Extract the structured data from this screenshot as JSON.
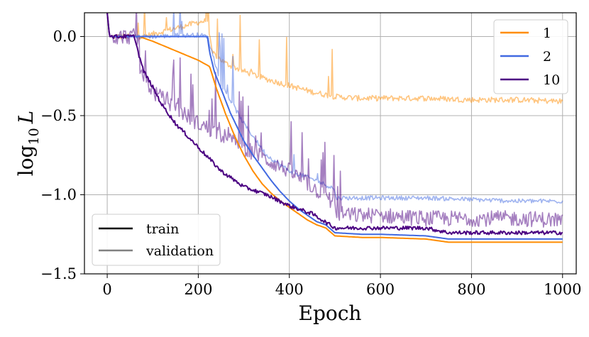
{
  "chart_data": {
    "type": "line",
    "title": "",
    "xlabel": "Epoch",
    "ylabel": "log10 L",
    "ylabel_parts": {
      "base": "log",
      "sub": "10",
      "var": "L"
    },
    "xlim": [
      -50,
      1030
    ],
    "ylim": [
      -1.5,
      0.15
    ],
    "xticks": [
      0,
      200,
      400,
      600,
      800,
      1000
    ],
    "xtick_labels": [
      "0",
      "200",
      "400",
      "600",
      "800",
      "1000"
    ],
    "yticks": [
      0.0,
      -0.5,
      -1.0,
      -1.5
    ],
    "ytick_labels": [
      "0.0",
      "−0.5",
      "−1.0",
      "−1.5"
    ],
    "grid": true,
    "colors": {
      "1": "#ff8c00",
      "2": "#4169e1",
      "10": "#4b0082",
      "train": "#000000",
      "validation": "#808080"
    },
    "legend_series": {
      "placement": "top-right",
      "entries": [
        "1",
        "2",
        "10"
      ]
    },
    "legend_style": {
      "placement": "bottom-left",
      "entries": [
        "train",
        "validation"
      ]
    },
    "series": [
      {
        "name": "1",
        "style": "train",
        "x": [
          0,
          5,
          70,
          100,
          150,
          200,
          225,
          240,
          260,
          280,
          300,
          320,
          340,
          360,
          380,
          400,
          420,
          440,
          460,
          480,
          500,
          560,
          600,
          700,
          750,
          800,
          900,
          1000
        ],
        "y": [
          0.15,
          0.0,
          0.0,
          -0.03,
          -0.09,
          -0.15,
          -0.19,
          -0.33,
          -0.49,
          -0.63,
          -0.75,
          -0.85,
          -0.93,
          -0.99,
          -1.04,
          -1.08,
          -1.12,
          -1.16,
          -1.19,
          -1.21,
          -1.26,
          -1.27,
          -1.27,
          -1.28,
          -1.3,
          -1.3,
          -1.3,
          -1.3
        ]
      },
      {
        "name": "2",
        "style": "train",
        "x": [
          0,
          5,
          220,
          225,
          235,
          250,
          270,
          300,
          320,
          340,
          360,
          380,
          400,
          420,
          440,
          460,
          480,
          500,
          560,
          600,
          700,
          750,
          800,
          900,
          1000
        ],
        "y": [
          0.15,
          0.0,
          0.0,
          -0.1,
          -0.22,
          -0.33,
          -0.48,
          -0.66,
          -0.75,
          -0.83,
          -0.91,
          -0.98,
          -1.04,
          -1.09,
          -1.13,
          -1.17,
          -1.19,
          -1.24,
          -1.25,
          -1.25,
          -1.26,
          -1.28,
          -1.28,
          -1.28,
          -1.28
        ]
      },
      {
        "name": "10",
        "style": "train",
        "x": [
          0,
          5,
          60,
          68,
          80,
          100,
          120,
          150,
          200,
          250,
          300,
          350,
          400,
          450,
          500,
          560,
          600,
          700,
          750,
          800,
          900,
          1000
        ],
        "y": [
          0.15,
          0.0,
          0.0,
          -0.1,
          -0.22,
          -0.32,
          -0.43,
          -0.55,
          -0.7,
          -0.85,
          -0.95,
          -1.0,
          -1.07,
          -1.12,
          -1.21,
          -1.21,
          -1.21,
          -1.21,
          -1.24,
          -1.24,
          -1.24,
          -1.24
        ]
      },
      {
        "name": "1",
        "style": "validation",
        "x": [
          0,
          5,
          80,
          120,
          160,
          200,
          220,
          230,
          260,
          300,
          350,
          400,
          450,
          500,
          550,
          600,
          700,
          800,
          900,
          1000
        ],
        "y": [
          0.15,
          0.0,
          0.0,
          0.03,
          0.06,
          0.09,
          0.1,
          -0.1,
          -0.17,
          -0.22,
          -0.27,
          -0.31,
          -0.35,
          -0.38,
          -0.39,
          -0.39,
          -0.39,
          -0.4,
          -0.4,
          -0.41
        ]
      },
      {
        "name": "2",
        "style": "validation",
        "x": [
          0,
          5,
          100,
          200,
          220,
          230,
          250,
          300,
          350,
          400,
          450,
          498,
          502,
          550,
          600,
          700,
          800,
          900,
          1000
        ],
        "y": [
          0.15,
          0.0,
          0.0,
          0.01,
          0.0,
          -0.1,
          -0.3,
          -0.55,
          -0.75,
          -0.85,
          -0.9,
          -0.96,
          -1.02,
          -1.02,
          -1.02,
          -1.02,
          -1.03,
          -1.04,
          -1.04
        ]
      },
      {
        "name": "10",
        "style": "validation",
        "x": [
          0,
          5,
          65,
          70,
          100,
          150,
          200,
          250,
          300,
          350,
          400,
          450,
          498,
          502,
          550,
          600,
          700,
          800,
          900,
          1000
        ],
        "y": [
          0.15,
          0.0,
          0.0,
          -0.2,
          -0.35,
          -0.45,
          -0.55,
          -0.62,
          -0.7,
          -0.78,
          -0.85,
          -0.95,
          -1.05,
          -1.12,
          -1.13,
          -1.13,
          -1.15,
          -1.15,
          -1.15,
          -1.16
        ]
      }
    ]
  }
}
